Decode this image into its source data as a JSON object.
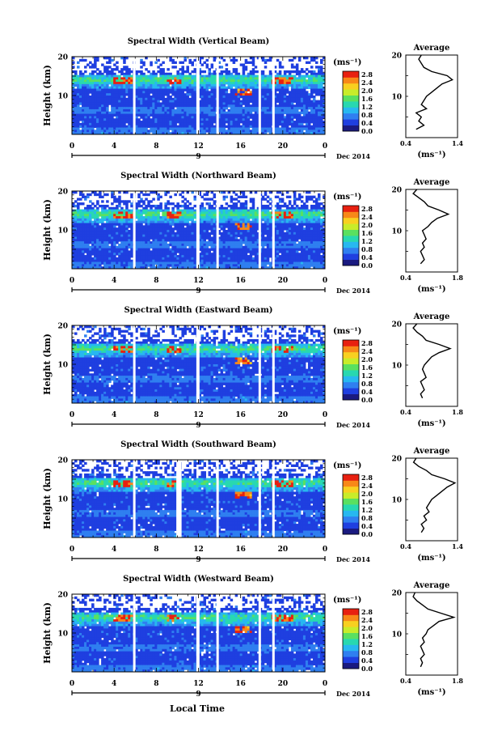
{
  "global": {
    "xlabel": "Local Time",
    "date_label": "Dec 2014",
    "x_ticks": [
      "0",
      "4",
      "8",
      "12",
      "16",
      "20",
      "0"
    ],
    "day_marker": "9",
    "ylabel": "Height (km)",
    "y_ticks": [
      "20",
      "10"
    ],
    "colorbar_unit": "(ms⁻¹)",
    "colorbar_ticks": [
      "2.8",
      "2.4",
      "2.0",
      "1.6",
      "1.2",
      "0.8",
      "0.4",
      "0.0"
    ],
    "avg_title": "Average",
    "avg_xlabel": "(ms⁻¹)",
    "avg_y_ticks": [
      "20",
      "10"
    ],
    "colormap": [
      "#1a1a80",
      "#1f3fe0",
      "#2f7ff0",
      "#27b8f0",
      "#28d8b0",
      "#5ae060",
      "#c8ec2a",
      "#f8d020",
      "#f88818",
      "#e82010"
    ]
  },
  "chart_data": [
    {
      "type": "heatmap",
      "title": "Spectral Width (Vertical Beam)",
      "x_range_hours": [
        0,
        24
      ],
      "ylim": [
        0,
        20
      ],
      "clim": [
        0.0,
        2.8
      ],
      "data_gaps_hours": [
        [
          5.8,
          6.0
        ],
        [
          11.8,
          12.1
        ],
        [
          13.7,
          13.9
        ],
        [
          17.7,
          17.9
        ],
        [
          19.0,
          19.2
        ]
      ],
      "average_profile": {
        "xlim_labels": [
          "0.4",
          "1.4"
        ],
        "height_km": [
          2,
          3,
          4,
          5,
          6,
          7,
          8,
          9,
          10,
          11,
          12,
          13,
          14,
          15,
          16,
          17,
          18,
          19,
          20
        ],
        "value_ms": [
          0.6,
          0.75,
          0.65,
          0.7,
          0.6,
          0.8,
          0.7,
          0.75,
          0.8,
          0.9,
          1.0,
          1.1,
          1.3,
          1.2,
          0.9,
          0.75,
          0.7,
          0.65,
          0.7
        ]
      }
    },
    {
      "type": "heatmap",
      "title": "Spectral Width (Northward Beam)",
      "x_range_hours": [
        0,
        24
      ],
      "ylim": [
        0,
        20
      ],
      "clim": [
        0.0,
        2.8
      ],
      "data_gaps_hours": [
        [
          5.8,
          6.0
        ],
        [
          11.8,
          12.1
        ],
        [
          13.7,
          13.9
        ],
        [
          17.7,
          17.9
        ],
        [
          19.0,
          19.2
        ]
      ],
      "average_profile": {
        "xlim_labels": [
          "0.4",
          "1.8"
        ],
        "height_km": [
          2,
          3,
          4,
          5,
          6,
          7,
          8,
          9,
          10,
          11,
          12,
          13,
          14,
          15,
          16,
          17,
          18,
          19,
          20
        ],
        "value_ms": [
          0.8,
          0.9,
          0.85,
          0.8,
          0.9,
          0.85,
          0.95,
          0.9,
          0.85,
          1.0,
          1.1,
          1.25,
          1.55,
          1.3,
          1.0,
          0.9,
          0.75,
          0.6,
          0.7
        ]
      }
    },
    {
      "type": "heatmap",
      "title": "Spectral Width (Eastward Beam)",
      "x_range_hours": [
        0,
        24
      ],
      "ylim": [
        0,
        20
      ],
      "clim": [
        0.0,
        2.8
      ],
      "data_gaps_hours": [
        [
          5.8,
          6.0
        ],
        [
          11.8,
          12.1
        ],
        [
          17.7,
          17.9
        ],
        [
          19.0,
          19.2
        ]
      ],
      "average_profile": {
        "xlim_labels": [
          "0.4",
          "1.8"
        ],
        "height_km": [
          2,
          3,
          4,
          5,
          6,
          7,
          8,
          9,
          10,
          11,
          12,
          13,
          14,
          15,
          16,
          17,
          18,
          19,
          20
        ],
        "value_ms": [
          0.85,
          0.8,
          0.9,
          0.85,
          0.8,
          0.95,
          0.9,
          0.85,
          0.9,
          1.0,
          1.1,
          1.3,
          1.6,
          1.3,
          0.95,
          0.85,
          0.7,
          0.6,
          0.7
        ]
      }
    },
    {
      "type": "heatmap",
      "title": "Spectral Width (Southward Beam)",
      "x_range_hours": [
        0,
        24
      ],
      "ylim": [
        0,
        20
      ],
      "clim": [
        0.0,
        2.8
      ],
      "data_gaps_hours": [
        [
          5.8,
          6.0
        ],
        [
          9.9,
          10.4
        ],
        [
          13.7,
          13.9
        ],
        [
          17.7,
          17.9
        ],
        [
          19.0,
          19.2
        ]
      ],
      "average_profile": {
        "xlim_labels": [
          "0.4",
          "1.4"
        ],
        "height_km": [
          2,
          3,
          4,
          5,
          6,
          7,
          8,
          9,
          10,
          11,
          12,
          13,
          14,
          15,
          16,
          17,
          18,
          19,
          20
        ],
        "value_ms": [
          0.7,
          0.75,
          0.7,
          0.8,
          0.75,
          0.85,
          0.8,
          0.85,
          0.9,
          1.0,
          1.1,
          1.2,
          1.35,
          1.15,
          0.9,
          0.8,
          0.65,
          0.55,
          0.6
        ]
      }
    },
    {
      "type": "heatmap",
      "title": "Spectral Width (Westward Beam)",
      "x_range_hours": [
        0,
        24
      ],
      "ylim": [
        0,
        20
      ],
      "clim": [
        0.0,
        2.8
      ],
      "data_gaps_hours": [
        [
          5.8,
          6.0
        ],
        [
          11.8,
          12.1
        ],
        [
          13.7,
          13.9
        ],
        [
          17.7,
          17.9
        ],
        [
          19.0,
          19.2
        ]
      ],
      "average_profile": {
        "xlim_labels": [
          "0.4",
          "1.8"
        ],
        "height_km": [
          2,
          3,
          4,
          5,
          6,
          7,
          8,
          9,
          10,
          11,
          12,
          13,
          14,
          15,
          16,
          17,
          18,
          19,
          20
        ],
        "value_ms": [
          0.8,
          0.85,
          0.8,
          0.9,
          0.85,
          0.8,
          0.9,
          0.85,
          0.95,
          1.0,
          1.15,
          1.3,
          1.7,
          1.35,
          1.0,
          0.85,
          0.7,
          0.6,
          0.65
        ]
      }
    }
  ]
}
